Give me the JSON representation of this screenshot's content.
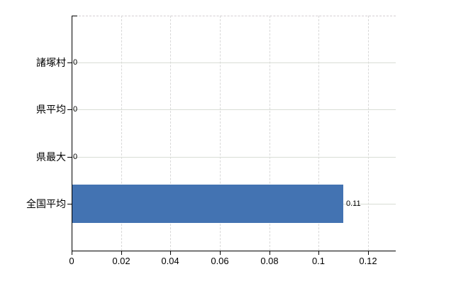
{
  "chart_data": {
    "type": "bar",
    "orientation": "horizontal",
    "title": "",
    "xlabel": "",
    "ylabel": "",
    "categories": [
      "諸塚村",
      "県平均",
      "県最大",
      "全国平均"
    ],
    "values": [
      0,
      0,
      0,
      0.11
    ],
    "value_labels": [
      "0",
      "0",
      "0",
      "0.11"
    ],
    "x_ticks": [
      0,
      0.02,
      0.04,
      0.06,
      0.08,
      0.1,
      0.12
    ],
    "x_tick_labels": [
      "0",
      "0.02",
      "0.04",
      "0.06",
      "0.08",
      "0.1",
      "0.12"
    ],
    "xlim": [
      0,
      0.1312
    ],
    "grid": true,
    "legend": false,
    "bar_color": "#4373b2",
    "axis_color": "#000000",
    "hgrid_color": "#d9ddd5",
    "vgrid_color": "#d8d8d8",
    "background_color": "#ffffff"
  }
}
